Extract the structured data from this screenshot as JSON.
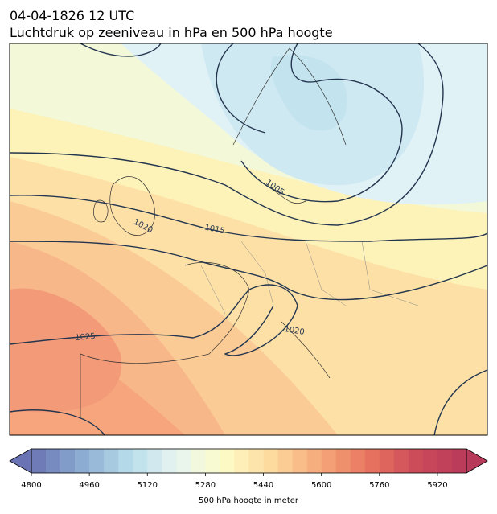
{
  "header": {
    "time": "04-04-1826 12 UTC",
    "title": "Luchtdruk op zeeniveau in hPa en 500 hPa hoogte"
  },
  "isobar_labels": [
    1005,
    1015,
    1020,
    1025,
    1020
  ],
  "colorbar": {
    "lim": [
      4800,
      6000
    ],
    "step": 40,
    "ticks": [
      4800,
      4960,
      5120,
      5280,
      5440,
      5600,
      5760,
      5920
    ],
    "label": "500 hPa hoogte in meter"
  }
}
